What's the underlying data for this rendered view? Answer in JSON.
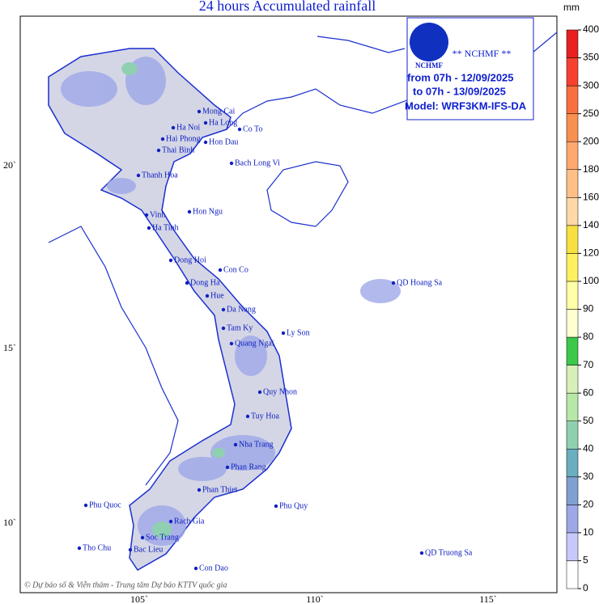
{
  "header": {
    "title": "24 hours Accumulated rainfall"
  },
  "info_box": {
    "logo_text": "NCHMF",
    "agency": "** NCHMF **",
    "from": "from 07h - 12/09/2025",
    "to": "to 07h - 13/09/2025",
    "model": "Model: WRF3KM-IFS-DA"
  },
  "legend": {
    "unit": "mm",
    "ticks": [
      0,
      5,
      10,
      20,
      30,
      40,
      50,
      60,
      70,
      80,
      90,
      100,
      120,
      140,
      160,
      180,
      200,
      250,
      300,
      350,
      400
    ],
    "colors": [
      "#ffffff",
      "#c8c8fa",
      "#9ea8e8",
      "#7fa0d0",
      "#6aaec0",
      "#8fd0b0",
      "#b8e8a8",
      "#d8f0b8",
      "#3cc84a",
      "#ffffd0",
      "#ffffa8",
      "#fff060",
      "#f8e040",
      "#ffd8a8",
      "#ffc088",
      "#ffa870",
      "#f89050",
      "#f87040",
      "#f84030",
      "#e82020"
    ]
  },
  "axes": {
    "lat_labels": [
      "20`",
      "15`",
      "10`"
    ],
    "lon_labels": [
      "105`",
      "110`",
      "115`"
    ]
  },
  "places": [
    "Mong Cai",
    "Ha Long",
    "Ha Noi",
    "Hai Phong",
    "Co To",
    "Hon Dau",
    "Thai Binh",
    "Bach Long Vi",
    "Thanh Hoa",
    "Hon Ngu",
    "Vinh",
    "Ha Tinh",
    "Dong Hoi",
    "Con Co",
    "Dong Ha",
    "Hue",
    "Da Nang",
    "Tam Ky",
    "Ly Son",
    "Quang Ngai",
    "QD Hoang Sa",
    "Quy Nhon",
    "Tuy Hoa",
    "Nha Trang",
    "Phan Rang",
    "Phan Thiet",
    "Phu Quy",
    "Phu Quoc",
    "Rach Gia",
    "Soc Trang",
    "Bac Lieu",
    "Tho Chu",
    "Con Dao",
    "QD Truong Sa"
  ],
  "credit": "© Dự báo số & Viễn thám - Trung tâm Dự báo KTTV quốc gia"
}
